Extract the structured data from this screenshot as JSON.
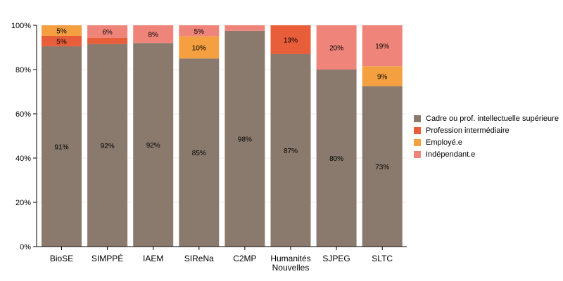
{
  "chart_data": {
    "type": "bar",
    "stacked": true,
    "normalized": true,
    "categories": [
      "BioSE",
      "SIMPPÉ",
      "IAEM",
      "SIReNa",
      "C2MP",
      "Humanités\nNouvelles",
      "SJPEG",
      "SLTC"
    ],
    "series": [
      {
        "name": "Cadre ou prof. intellectuelle supérieure",
        "color": "#8a7a6d",
        "values": [
          90.5,
          91.5,
          92,
          85,
          97.5,
          87,
          80,
          72.5
        ]
      },
      {
        "name": "Profession intermédiaire",
        "color": "#e85d3a",
        "values": [
          4.75,
          2.9,
          0,
          0,
          0,
          13,
          0,
          0
        ]
      },
      {
        "name": "Employé.e",
        "color": "#f4a040",
        "values": [
          4.75,
          0,
          0,
          10,
          0,
          0,
          0,
          9
        ]
      },
      {
        "name": "Indépendant.e",
        "color": "#ef857a",
        "values": [
          0,
          5.6,
          8,
          5,
          2.5,
          0,
          20,
          18.5
        ]
      }
    ],
    "ylim": [
      0,
      100
    ],
    "yticks": [
      "0%",
      "20%",
      "40%",
      "60%",
      "80%",
      "100%"
    ],
    "grid": true,
    "legend_position": "right",
    "xlabel": "",
    "ylabel": ""
  }
}
